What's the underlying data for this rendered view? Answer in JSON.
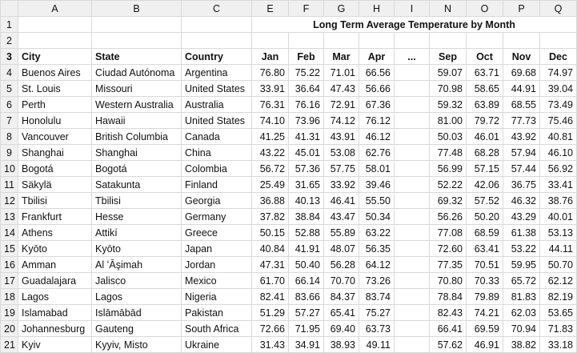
{
  "columns": [
    "A",
    "B",
    "C",
    "E",
    "F",
    "G",
    "H",
    "I",
    "N",
    "O",
    "P",
    "Q"
  ],
  "title": "Long Term Average Temperature by Month",
  "headers": [
    "City",
    "State",
    "Country",
    "Jan",
    "Feb",
    "Mar",
    "Apr",
    "...",
    "Sep",
    "Oct",
    "Nov",
    "Dec"
  ],
  "rows": [
    [
      "Buenos Aires",
      "Ciudad Autónoma",
      "Argentina",
      "76.80",
      "75.22",
      "71.01",
      "66.56",
      "",
      "59.07",
      "63.71",
      "69.68",
      "74.97"
    ],
    [
      "St. Louis",
      "Missouri",
      "United States",
      "33.91",
      "36.64",
      "47.43",
      "56.66",
      "",
      "70.98",
      "58.65",
      "44.91",
      "39.04"
    ],
    [
      "Perth",
      "Western Australia",
      "Australia",
      "76.31",
      "76.16",
      "72.91",
      "67.36",
      "",
      "59.32",
      "63.89",
      "68.55",
      "73.49"
    ],
    [
      "Honolulu",
      "Hawaii",
      "United States",
      "74.10",
      "73.96",
      "74.12",
      "76.12",
      "",
      "81.00",
      "79.72",
      "77.73",
      "75.46"
    ],
    [
      "Vancouver",
      "British Columbia",
      "Canada",
      "41.25",
      "41.31",
      "43.91",
      "46.12",
      "",
      "50.03",
      "46.01",
      "43.92",
      "40.81"
    ],
    [
      "Shanghai",
      "Shanghai",
      "China",
      "43.22",
      "45.01",
      "53.08",
      "62.76",
      "",
      "77.48",
      "68.28",
      "57.94",
      "46.10"
    ],
    [
      "Bogotá",
      "Bogotá",
      "Colombia",
      "56.72",
      "57.36",
      "57.75",
      "58.01",
      "",
      "56.99",
      "57.15",
      "57.44",
      "56.92"
    ],
    [
      "Säkylä",
      "Satakunta",
      "Finland",
      "25.49",
      "31.65",
      "33.92",
      "39.46",
      "",
      "52.22",
      "42.06",
      "36.75",
      "33.41"
    ],
    [
      "Tbilisi",
      "Tbilisi",
      "Georgia",
      "36.88",
      "40.13",
      "46.41",
      "55.50",
      "",
      "69.32",
      "57.52",
      "46.32",
      "38.76"
    ],
    [
      "Frankfurt",
      "Hesse",
      "Germany",
      "37.82",
      "38.84",
      "43.47",
      "50.34",
      "",
      "56.26",
      "50.20",
      "43.29",
      "40.01"
    ],
    [
      "Athens",
      "Attikí",
      "Greece",
      "50.15",
      "52.88",
      "55.89",
      "63.22",
      "",
      "77.08",
      "68.59",
      "61.38",
      "53.13"
    ],
    [
      "Kyōto",
      "Kyōto",
      "Japan",
      "40.84",
      "41.91",
      "48.07",
      "56.35",
      "",
      "72.60",
      "63.41",
      "53.22",
      "44.11"
    ],
    [
      "Amman",
      "Al ʻĀşimah",
      "Jordan",
      "47.31",
      "50.40",
      "56.28",
      "64.12",
      "",
      "77.35",
      "70.51",
      "59.95",
      "50.70"
    ],
    [
      "Guadalajara",
      "Jalisco",
      "Mexico",
      "61.70",
      "66.14",
      "70.70",
      "73.26",
      "",
      "70.80",
      "70.33",
      "65.72",
      "62.12"
    ],
    [
      "Lagos",
      "Lagos",
      "Nigeria",
      "82.41",
      "83.66",
      "84.37",
      "83.74",
      "",
      "78.84",
      "79.89",
      "81.83",
      "82.19"
    ],
    [
      "Islamabad",
      "Islāmābād",
      "Pakistan",
      "51.29",
      "57.27",
      "65.41",
      "75.27",
      "",
      "82.43",
      "74.21",
      "62.03",
      "53.65"
    ],
    [
      "Johannesburg",
      "Gauteng",
      "South Africa",
      "72.66",
      "71.95",
      "69.40",
      "63.73",
      "",
      "66.41",
      "69.59",
      "70.94",
      "71.83"
    ],
    [
      "Kyiv",
      "Kyyiv, Misto",
      "Ukraine",
      "31.43",
      "34.91",
      "38.93",
      "49.11",
      "",
      "57.62",
      "46.91",
      "38.82",
      "33.18"
    ]
  ]
}
